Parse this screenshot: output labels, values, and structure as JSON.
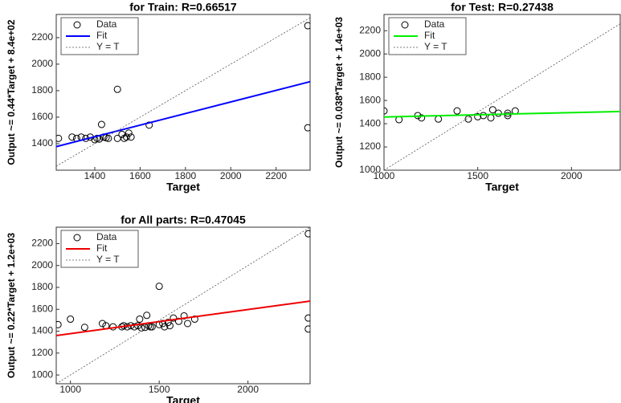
{
  "chart_data": [
    {
      "type": "scatter",
      "title": "for Train: R=0.66517",
      "xlabel": "Target",
      "ylabel": "Output ~= 0.44*Target + 8.4e+02",
      "xlim": [
        1230,
        2350
      ],
      "ylim": [
        1200,
        2375
      ],
      "xticks": [
        1400,
        1600,
        1800,
        2000,
        2200
      ],
      "yticks": [
        1400,
        1600,
        1800,
        2000,
        2200
      ],
      "legend": "upper left",
      "series": [
        {
          "name": "Data",
          "color": "#000000",
          "style": "circle",
          "x": [
            1240,
            1300,
            1320,
            1340,
            1360,
            1380,
            1400,
            1410,
            1420,
            1440,
            1450,
            1430,
            1460,
            1500,
            1500,
            1520,
            1530,
            1540,
            1550,
            1560,
            1640,
            2340,
            2340
          ],
          "values": [
            1440,
            1450,
            1440,
            1450,
            1440,
            1450,
            1430,
            1440,
            1435,
            1450,
            1445,
            1545,
            1440,
            1810,
            1440,
            1470,
            1440,
            1450,
            1480,
            1450,
            1540,
            2290,
            1520
          ]
        },
        {
          "name": "Fit",
          "color": "#0000ff",
          "style": "solid",
          "x": [
            1230,
            2350
          ],
          "values": [
            1378,
            1868
          ]
        },
        {
          "name": "Y = T",
          "color": "#555555",
          "style": "dotted",
          "x": [
            1230,
            2350
          ],
          "values": [
            1230,
            2350
          ]
        }
      ]
    },
    {
      "type": "scatter",
      "title": "for Test: R=0.27438",
      "xlabel": "Target",
      "ylabel": "Output ~= 0.038*Target + 1.4e+03",
      "xlim": [
        1000,
        2260
      ],
      "ylim": [
        1000,
        2340
      ],
      "xticks": [
        1000,
        1500,
        2000
      ],
      "yticks": [
        1000,
        1200,
        1400,
        1600,
        1800,
        2000,
        2200
      ],
      "legend": "upper left",
      "series": [
        {
          "name": "Data",
          "color": "#000000",
          "style": "circle",
          "x": [
            1000,
            1080,
            1180,
            1200,
            1290,
            1390,
            1450,
            1500,
            1530,
            1570,
            1580,
            1610,
            1660,
            1660,
            1700
          ],
          "values": [
            1510,
            1435,
            1470,
            1450,
            1440,
            1510,
            1440,
            1460,
            1470,
            1450,
            1520,
            1490,
            1470,
            1490,
            1510
          ]
        },
        {
          "name": "Fit",
          "color": "#00ee00",
          "style": "solid",
          "x": [
            1000,
            2260
          ],
          "values": [
            1458,
            1505
          ]
        },
        {
          "name": "Y = T",
          "color": "#555555",
          "style": "dotted",
          "x": [
            1000,
            2260
          ],
          "values": [
            1000,
            2260
          ]
        }
      ]
    },
    {
      "type": "scatter",
      "title": "for All parts: R=0.47045",
      "xlabel": "Target",
      "ylabel": "Output ~= 0.22*Target + 1.2e+03",
      "xlim": [
        920,
        2350
      ],
      "ylim": [
        920,
        2350
      ],
      "xticks": [
        1000,
        1500,
        2000
      ],
      "yticks": [
        1000,
        1200,
        1400,
        1600,
        1800,
        2000,
        2200
      ],
      "legend": "upper left",
      "series": [
        {
          "name": "Data",
          "color": "#000000",
          "style": "circle",
          "x": [
            930,
            1000,
            1080,
            1180,
            1200,
            1240,
            1290,
            1300,
            1320,
            1340,
            1360,
            1380,
            1390,
            1400,
            1420,
            1430,
            1440,
            1450,
            1460,
            1500,
            1500,
            1520,
            1530,
            1550,
            1560,
            1580,
            1610,
            1640,
            1660,
            1700,
            2340,
            2340,
            2340
          ],
          "values": [
            1460,
            1510,
            1435,
            1470,
            1450,
            1440,
            1440,
            1450,
            1440,
            1450,
            1440,
            1450,
            1510,
            1430,
            1435,
            1545,
            1450,
            1440,
            1440,
            1810,
            1460,
            1470,
            1440,
            1480,
            1450,
            1520,
            1490,
            1540,
            1470,
            1510,
            2290,
            1520,
            1420
          ]
        },
        {
          "name": "Fit",
          "color": "#ee0000",
          "style": "solid",
          "x": [
            920,
            2350
          ],
          "values": [
            1360,
            1675
          ]
        },
        {
          "name": "Y = T",
          "color": "#555555",
          "style": "dotted",
          "x": [
            920,
            2350
          ],
          "values": [
            920,
            2350
          ]
        }
      ]
    }
  ]
}
